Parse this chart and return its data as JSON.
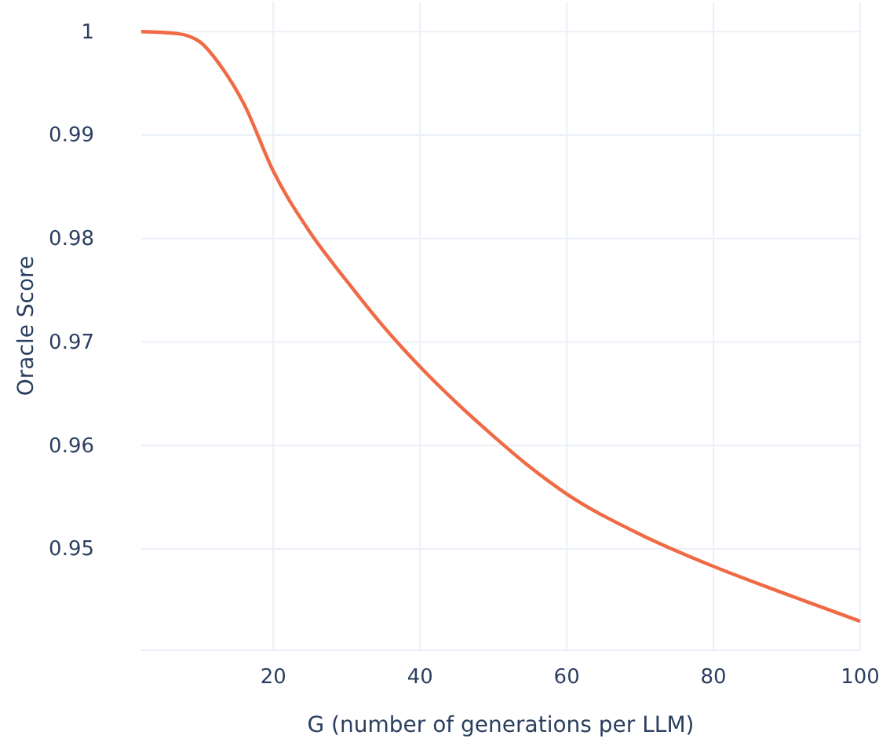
{
  "chart_data": {
    "type": "line",
    "xlabel": "G (number of generations per LLM)",
    "ylabel": "Oracle Score",
    "x": [
      2,
      7,
      10,
      13,
      16,
      20,
      25,
      30,
      35,
      40,
      45,
      50,
      55,
      60,
      70,
      80,
      90,
      100
    ],
    "series": [
      {
        "color": "#ef6a45",
        "values": [
          1.0,
          0.9998,
          0.999,
          0.9965,
          0.993,
          0.9865,
          0.9806,
          0.9759,
          0.9715,
          0.9676,
          0.9641,
          0.9609,
          0.9579,
          0.9553,
          0.9514,
          0.9483,
          0.9456,
          0.943
        ]
      }
    ],
    "xlim": [
      2,
      100
    ],
    "xticks": [
      20,
      40,
      60,
      80,
      100
    ],
    "ylim": [
      0.9402,
      1.0029
    ],
    "yticks": [
      0.95,
      0.96,
      0.97,
      0.98,
      0.99,
      {
        "value": 1,
        "label": "1"
      }
    ],
    "grid": true,
    "line_style": "solid",
    "marker": "none"
  }
}
